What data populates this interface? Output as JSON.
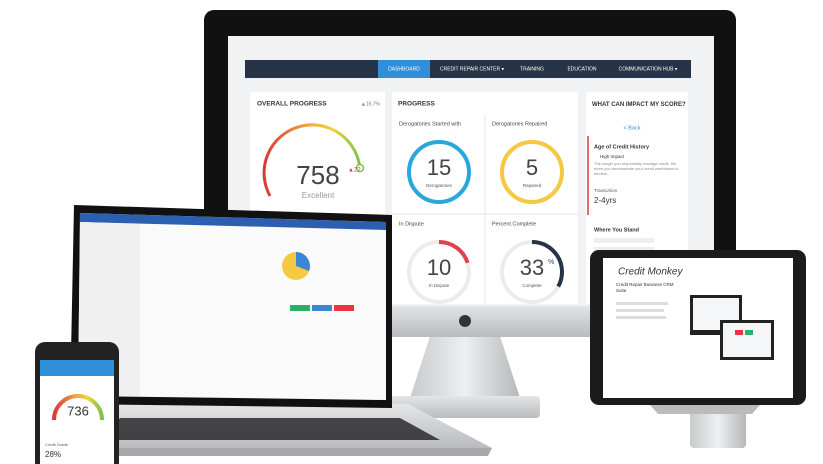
{
  "nav": [
    "DASHBOARD",
    "CREDIT REPAIR CENTER ▾",
    "TRAINING",
    "EDUCATION",
    "COMMUNICATION HUB ▾"
  ],
  "overall": {
    "title": "OVERALL PROGRESS",
    "change": "▲16.7%",
    "score": "758",
    "delta": "▲22",
    "grade": "Excellent"
  },
  "progress": {
    "title": "PROGRESS",
    "cards": [
      {
        "heading": "Derogatories Started with",
        "number": "15",
        "caption": "Derogatories"
      },
      {
        "heading": "Derogatories Repaired",
        "number": "5",
        "caption": "Repaired"
      },
      {
        "heading": "In Dispute",
        "number": "10",
        "caption": "In Dispute"
      },
      {
        "heading": "Percent Complete",
        "number": "33",
        "suffix": "%",
        "caption": "Complete"
      }
    ]
  },
  "impact": {
    "title": "WHAT CAN IMPACT MY SCORE?",
    "back": "< Back",
    "factor": "Age of Credit History",
    "level": "High Impact",
    "text": "The longer you responsibly manage credit, the more you demonstrate your credit worthiness to lenders.",
    "bureau": "TransUnion",
    "range": "2-4yrs",
    "stand": "Where You Stand"
  },
  "phone": {
    "score": "736",
    "label": "Credit Grade",
    "percent": "28%"
  },
  "tablet": {
    "brand": "Credit Monkey",
    "tagline": "Credit Repair Business CRM Suite"
  }
}
